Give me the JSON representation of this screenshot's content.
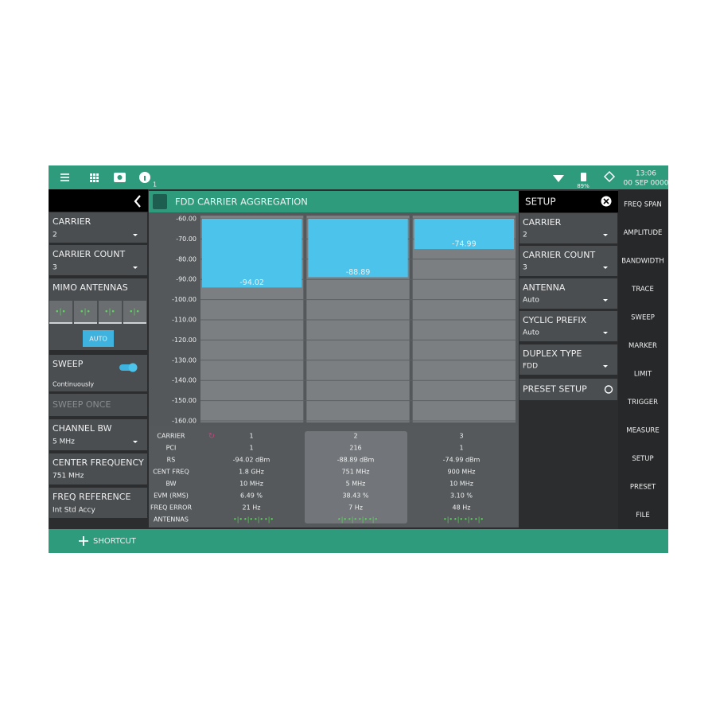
{
  "top_bar": {
    "info_count": "1",
    "battery": "89%",
    "time": "13:06",
    "date": "00 SEP 0000"
  },
  "left_panel": {
    "items": [
      {
        "label": "CARRIER",
        "value": "2"
      },
      {
        "label": "CARRIER COUNT",
        "value": "3"
      },
      {
        "label": "MIMO ANTENNAS",
        "button": "AUTO"
      },
      {
        "label": "SWEEP",
        "value": "Continuously"
      },
      {
        "label": "SWEEP ONCE"
      },
      {
        "label": "CHANNEL BW",
        "value": "5 MHz"
      },
      {
        "label": "CENTER FREQUENCY",
        "value": "751 MHz"
      },
      {
        "label": "FREQ REFERENCE",
        "value": "Int Std Accy"
      }
    ]
  },
  "header": {
    "title": "FDD CARRIER AGGREGATION"
  },
  "chart_data": {
    "type": "bar",
    "values": [
      -94.02,
      -88.89,
      -74.99
    ],
    "color": "#4cc3ea",
    "ylim": [
      -160,
      -60
    ],
    "yticks": [
      {
        "value": -60,
        "label": "-60.00"
      },
      {
        "value": -70,
        "label": "-70.00"
      },
      {
        "value": -80,
        "label": "-80.00"
      },
      {
        "value": -90,
        "label": "-90.00"
      },
      {
        "value": -100,
        "label": "-100.00"
      },
      {
        "value": -110,
        "label": "-110.00"
      },
      {
        "value": -120,
        "label": "-120.00"
      },
      {
        "value": -130,
        "label": "-130.00"
      },
      {
        "value": -140,
        "label": "-140.00"
      },
      {
        "value": -150,
        "label": "-150.00"
      },
      {
        "value": -160,
        "label": "-160.00"
      }
    ],
    "grid": true
  },
  "table": {
    "rows": [
      [
        "CARRIER",
        "1",
        "2",
        "3"
      ],
      [
        "PCI",
        "1",
        "216",
        "1"
      ],
      [
        "RS",
        "-94.02 dBm",
        "-88.89 dBm",
        "-74.99 dBm"
      ],
      [
        "CENT FREQ",
        "1.8 GHz",
        "751 MHz",
        "900 MHz"
      ],
      [
        "BW",
        "10 MHz",
        "5 MHz",
        "10 MHz"
      ],
      [
        "EVM (RMS)",
        "6.49 %",
        "38.43 %",
        "3.10 %"
      ],
      [
        "FREQ ERROR",
        "21 Hz",
        "7 Hz",
        "48 Hz"
      ],
      [
        "ANTENNAS"
      ]
    ]
  },
  "setup_panel": {
    "title": "SETUP",
    "items": [
      {
        "label": "CARRIER",
        "value": "2"
      },
      {
        "label": "CARRIER COUNT",
        "value": "3"
      },
      {
        "label": "ANTENNA",
        "value": "Auto"
      },
      {
        "label": "CYCLIC PREFIX",
        "value": "Auto"
      },
      {
        "label": "DUPLEX TYPE",
        "value": "FDD"
      },
      {
        "label": "PRESET SETUP"
      }
    ]
  },
  "menu": [
    "FREQ SPAN",
    "AMPLITUDE",
    "BANDWIDTH",
    "TRACE",
    "SWEEP",
    "MARKER",
    "LIMIT",
    "TRIGGER",
    "MEASURE",
    "SETUP",
    "PRESET",
    "FILE"
  ],
  "bottom_bar": {
    "shortcut": "SHORTCUT"
  }
}
